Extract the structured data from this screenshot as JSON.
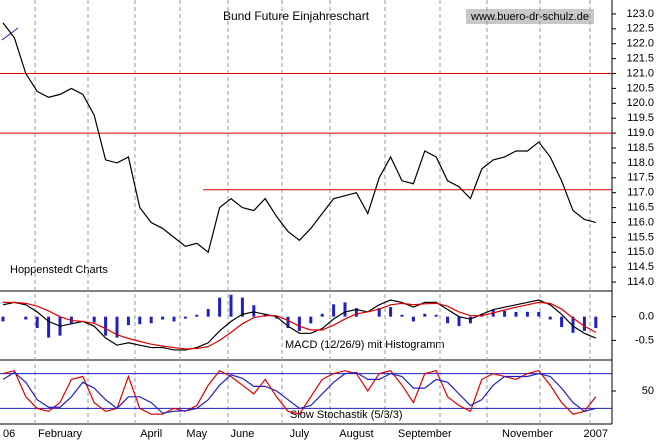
{
  "chart_data": [
    {
      "type": "line",
      "title": "Bund Future Einjahreschart",
      "source": "www.buero-dr-schulz.de",
      "annotation": "Hoppenstedt Charts",
      "ylim": [
        113.7,
        123.3
      ],
      "yticks": [
        {
          "value": 114,
          "label": "114.0"
        },
        {
          "value": 114.5,
          "label": "114.5"
        },
        {
          "value": 115,
          "label": "115.0"
        },
        {
          "value": 115.5,
          "label": "115.5"
        },
        {
          "value": 116,
          "label": "116.0"
        },
        {
          "value": 116.5,
          "label": "116.5"
        },
        {
          "value": 117,
          "label": "117.0"
        },
        {
          "value": 117.5,
          "label": "117.5"
        },
        {
          "value": 118,
          "label": "118.0"
        },
        {
          "value": 118.5,
          "label": "118.5"
        },
        {
          "value": 119,
          "label": "119.0"
        },
        {
          "value": 119.5,
          "label": "119.5"
        },
        {
          "value": 120,
          "label": "120.0"
        },
        {
          "value": 120.5,
          "label": "120.5"
        },
        {
          "value": 121,
          "label": "121.0"
        },
        {
          "value": 121.5,
          "label": "121.5"
        },
        {
          "value": 122,
          "label": "122.0"
        },
        {
          "value": 122.5,
          "label": "122.5"
        },
        {
          "value": 123,
          "label": "123.0"
        }
      ],
      "reference_lines": [
        121.0,
        119.0,
        117.1
      ],
      "reference_color": "#e00000",
      "series": [
        {
          "color": "#000000",
          "values": [
            122.7,
            122.2,
            121.0,
            120.4,
            120.2,
            120.3,
            120.5,
            120.3,
            119.6,
            118.1,
            118.0,
            118.2,
            116.5,
            116.0,
            115.8,
            115.5,
            115.2,
            115.3,
            115.0,
            116.5,
            116.8,
            116.5,
            116.4,
            116.8,
            116.2,
            115.7,
            115.4,
            115.8,
            116.3,
            116.8,
            116.9,
            117.0,
            116.3,
            117.5,
            118.2,
            117.4,
            117.3,
            118.4,
            118.2,
            117.4,
            117.2,
            116.8,
            117.8,
            118.1,
            118.2,
            118.4,
            118.4,
            118.7,
            118.2,
            117.4,
            116.4,
            116.1,
            116.0
          ]
        }
      ]
    },
    {
      "type": "macd",
      "annotation": "MACD (12/26/9) mit Histogramm",
      "ylim": [
        -0.87,
        0.54
      ],
      "yticks": [
        {
          "value": 0,
          "label": "0.0"
        },
        -0.5
      ],
      "series": [
        {
          "color": "#000000",
          "values": [
            0.25,
            0.3,
            0.25,
            0.1,
            -0.1,
            -0.2,
            -0.15,
            -0.1,
            -0.2,
            -0.45,
            -0.6,
            -0.55,
            -0.6,
            -0.65,
            -0.65,
            -0.7,
            -0.7,
            -0.65,
            -0.55,
            -0.3,
            -0.1,
            0.05,
            0.1,
            0.05,
            0.0,
            -0.2,
            -0.35,
            -0.35,
            -0.25,
            -0.05,
            0.1,
            0.15,
            0.1,
            0.25,
            0.35,
            0.3,
            0.2,
            0.3,
            0.3,
            0.15,
            0.0,
            -0.05,
            0.05,
            0.15,
            0.2,
            0.25,
            0.3,
            0.35,
            0.25,
            0.05,
            -0.2,
            -0.35,
            -0.45
          ]
        },
        {
          "color": "#e00000",
          "values": [
            0.3,
            0.3,
            0.28,
            0.22,
            0.12,
            0.0,
            -0.08,
            -0.1,
            -0.14,
            -0.25,
            -0.38,
            -0.46,
            -0.52,
            -0.58,
            -0.62,
            -0.65,
            -0.68,
            -0.67,
            -0.63,
            -0.5,
            -0.33,
            -0.15,
            -0.02,
            0.02,
            0.02,
            -0.08,
            -0.2,
            -0.28,
            -0.28,
            -0.18,
            -0.05,
            0.06,
            0.1,
            0.16,
            0.25,
            0.28,
            0.25,
            0.27,
            0.28,
            0.22,
            0.1,
            0.02,
            0.02,
            0.08,
            0.14,
            0.2,
            0.25,
            0.3,
            0.28,
            0.16,
            -0.03,
            -0.2,
            -0.33
          ]
        }
      ],
      "histogram": {
        "color": "#2020c0",
        "values": [
          -0.1,
          0,
          -0.06,
          -0.24,
          -0.44,
          -0.4,
          -0.14,
          0,
          -0.12,
          -0.4,
          -0.44,
          -0.18,
          -0.16,
          -0.14,
          -0.06,
          -0.1,
          -0.04,
          0.04,
          0.16,
          0.4,
          0.46,
          0.4,
          0.24,
          0.06,
          -0.04,
          -0.24,
          -0.3,
          -0.14,
          0.06,
          0.26,
          0.3,
          0.18,
          0,
          0.18,
          0.2,
          0.04,
          -0.1,
          0.06,
          0.04,
          -0.14,
          -0.2,
          -0.14,
          0.06,
          0.14,
          0.12,
          0.1,
          0.1,
          0.1,
          -0.06,
          -0.22,
          -0.34,
          -0.3,
          -0.24
        ]
      }
    },
    {
      "type": "stochastic",
      "annotation": "Slow Stochastik (5/3/3)",
      "ylim": [
        0,
        100
      ],
      "yticks": [
        50
      ],
      "reference_lines": [
        80,
        20
      ],
      "reference_color": "#2020c0",
      "categories": [
        "06",
        null,
        null,
        null,
        null,
        "February",
        null,
        null,
        null,
        null,
        null,
        null,
        null,
        "April",
        null,
        null,
        null,
        "May",
        null,
        null,
        null,
        "June",
        null,
        null,
        null,
        null,
        "July",
        null,
        null,
        null,
        null,
        "August",
        null,
        null,
        null,
        null,
        null,
        "September",
        null,
        null,
        null,
        null,
        null,
        null,
        null,
        null,
        "November",
        null,
        null,
        null,
        null,
        null,
        "2007"
      ],
      "series": [
        {
          "color": "#e00000",
          "values": [
            80,
            85,
            40,
            20,
            15,
            30,
            70,
            75,
            30,
            15,
            20,
            75,
            20,
            10,
            10,
            20,
            15,
            25,
            60,
            85,
            75,
            60,
            45,
            70,
            40,
            15,
            10,
            40,
            70,
            80,
            85,
            80,
            50,
            80,
            85,
            60,
            30,
            80,
            85,
            40,
            25,
            15,
            70,
            80,
            75,
            70,
            80,
            85,
            60,
            30,
            10,
            15,
            40
          ]
        },
        {
          "color": "#2020c0",
          "values": [
            70,
            82,
            65,
            35,
            22,
            22,
            40,
            65,
            55,
            35,
            20,
            40,
            40,
            30,
            12,
            15,
            16,
            20,
            35,
            60,
            78,
            72,
            58,
            58,
            50,
            35,
            20,
            25,
            45,
            65,
            80,
            82,
            70,
            70,
            80,
            75,
            55,
            55,
            70,
            65,
            45,
            25,
            35,
            60,
            75,
            75,
            75,
            80,
            75,
            55,
            30,
            15,
            20
          ]
        }
      ]
    }
  ]
}
